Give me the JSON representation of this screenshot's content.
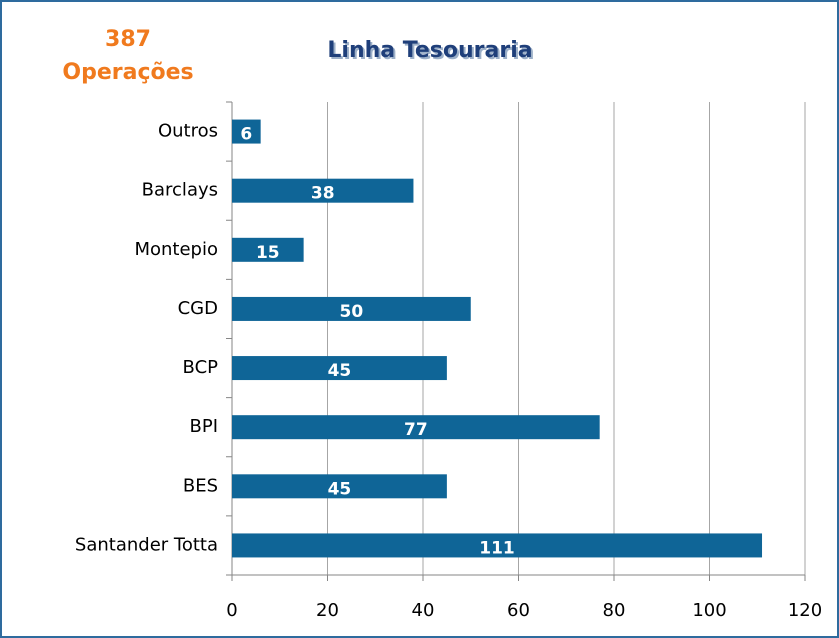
{
  "chart_data": {
    "type": "bar",
    "orientation": "horizontal",
    "title": "Linha Tesouraria",
    "annotations": [
      "387",
      "Operações"
    ],
    "categories": [
      "Outros",
      "Barclays",
      "Montepio",
      "CGD",
      "BCP",
      "BPI",
      "BES",
      "Santander Totta"
    ],
    "values": [
      6,
      38,
      15,
      50,
      45,
      77,
      45,
      111
    ],
    "color": "#0f6597",
    "xlim": [
      0,
      120
    ],
    "xticks": [
      0,
      20,
      40,
      60,
      80,
      100,
      120
    ],
    "grid": true
  }
}
